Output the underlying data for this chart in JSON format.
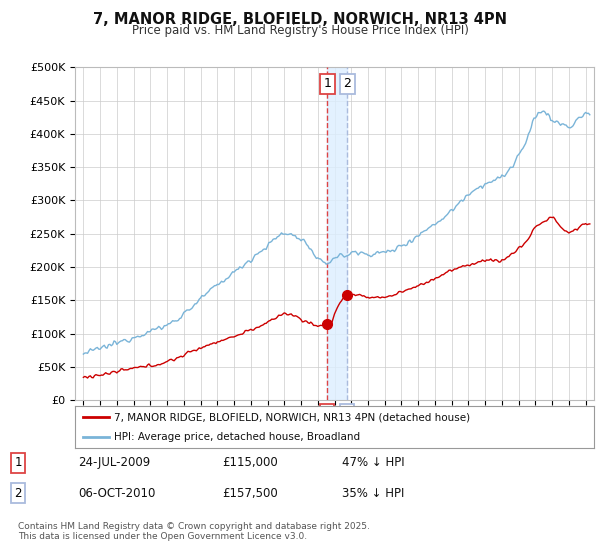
{
  "title": "7, MANOR RIDGE, BLOFIELD, NORWICH, NR13 4PN",
  "subtitle": "Price paid vs. HM Land Registry's House Price Index (HPI)",
  "ylabel_ticks": [
    "£0",
    "£50K",
    "£100K",
    "£150K",
    "£200K",
    "£250K",
    "£300K",
    "£350K",
    "£400K",
    "£450K",
    "£500K"
  ],
  "ytick_vals": [
    0,
    50000,
    100000,
    150000,
    200000,
    250000,
    300000,
    350000,
    400000,
    450000,
    500000
  ],
  "xlim": [
    1994.5,
    2025.5
  ],
  "ylim": [
    0,
    500000
  ],
  "sale1_date": 2009.56,
  "sale1_price": 115000,
  "sale2_date": 2010.76,
  "sale2_price": 157500,
  "hpi_color": "#7ab4d8",
  "price_color": "#cc0000",
  "vline1_color": "#dd4444",
  "vline2_color": "#aabbdd",
  "shade_color": "#ddeeff",
  "legend_label_price": "7, MANOR RIDGE, BLOFIELD, NORWICH, NR13 4PN (detached house)",
  "legend_label_hpi": "HPI: Average price, detached house, Broadland",
  "table_rows": [
    {
      "num": "1",
      "date": "24-JUL-2009",
      "price": "£115,000",
      "note": "47% ↓ HPI"
    },
    {
      "num": "2",
      "date": "06-OCT-2010",
      "price": "£157,500",
      "note": "35% ↓ HPI"
    }
  ],
  "footer": "Contains HM Land Registry data © Crown copyright and database right 2025.\nThis data is licensed under the Open Government Licence v3.0.",
  "background_color": "#ffffff",
  "grid_color": "#cccccc"
}
